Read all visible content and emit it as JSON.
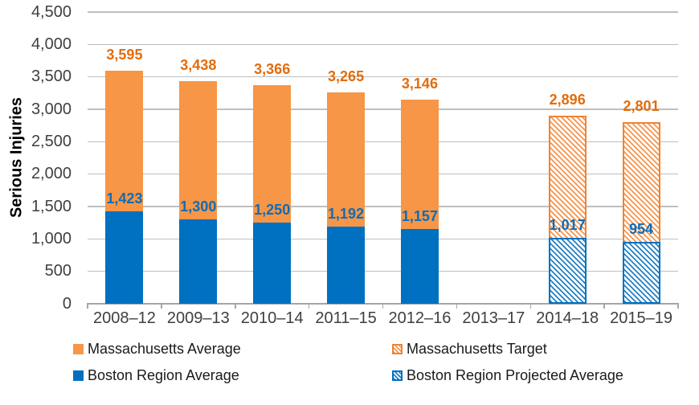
{
  "chart_data": {
    "type": "bar",
    "stacked": true,
    "title": "",
    "xlabel": "",
    "ylabel": "Serious Injuries",
    "ylim": [
      0,
      4500
    ],
    "ytick_step": 500,
    "grid": "horizontal",
    "legend_position": "bottom",
    "categories": [
      "2008–12",
      "2009–13",
      "2010–14",
      "2011–15",
      "2012–16",
      "2013–17",
      "2014–18",
      "2015–19"
    ],
    "series": [
      {
        "name": "Massachusetts Average",
        "role": "total-height",
        "pattern": "solid",
        "color": "#F79646",
        "values": [
          3595,
          3438,
          3366,
          3265,
          3146,
          null,
          null,
          null
        ]
      },
      {
        "name": "Massachusetts Target",
        "role": "total-height",
        "pattern": "hatch",
        "color": "#EE8435",
        "values": [
          null,
          null,
          null,
          null,
          null,
          null,
          2896,
          2801
        ]
      },
      {
        "name": "Boston Region Average",
        "role": "bottom-segment",
        "pattern": "solid",
        "color": "#0070C0",
        "values": [
          1423,
          1300,
          1250,
          1192,
          1157,
          null,
          null,
          null
        ]
      },
      {
        "name": "Boston Region Projected Average",
        "role": "bottom-segment",
        "pattern": "hatch",
        "color": "#0070C0",
        "values": [
          null,
          null,
          null,
          null,
          null,
          null,
          1017,
          954
        ]
      }
    ],
    "colors": {
      "orange_bar": "#F79646",
      "orange_label": "#E36C0A",
      "blue_bar": "#0070C0",
      "blue_label": "#0F6CB8",
      "gridline": "#BFBFBF",
      "axis": "#A6A6A6",
      "tick_text": "#3F3F3F"
    }
  },
  "legend": {
    "items": [
      {
        "label": "Massachusetts Average",
        "swatch": "orange-solid"
      },
      {
        "label": "Massachusetts Target",
        "swatch": "orange-hatch"
      },
      {
        "label": "Boston Region Average",
        "swatch": "blue-solid"
      },
      {
        "label": "Boston Region Projected Average",
        "swatch": "blue-hatch"
      }
    ]
  }
}
